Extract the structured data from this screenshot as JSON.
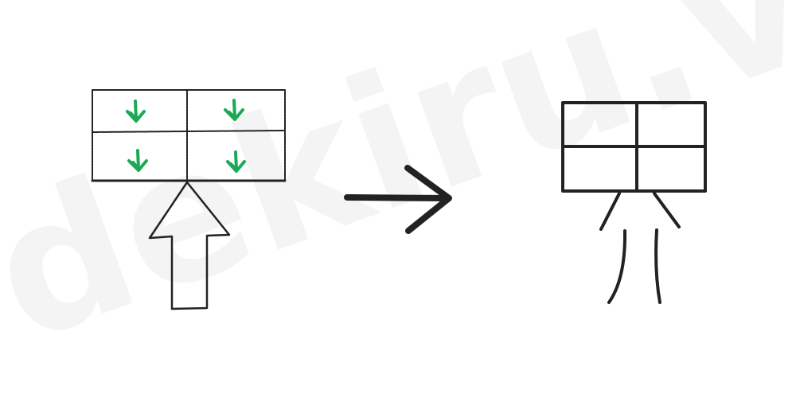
{
  "watermark": "dekiru.vn"
}
